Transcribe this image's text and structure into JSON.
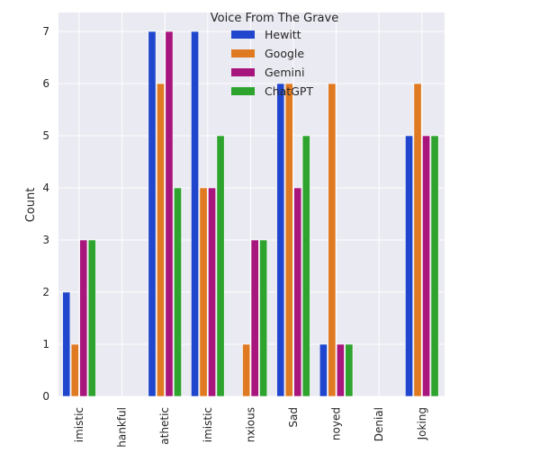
{
  "chart_data": {
    "type": "bar",
    "title": "",
    "xlabel": "",
    "ylabel": "Count",
    "ylim": [
      0,
      7
    ],
    "yticks": [
      0,
      1,
      2,
      3,
      4,
      5,
      6,
      7
    ],
    "grid": true,
    "legend": {
      "title": "Voice From The Grave",
      "placement": "top-center"
    },
    "categories": [
      "Optimistic",
      "Thankful",
      "Sympathetic",
      "Pessimistic",
      "Anxious",
      "Sad",
      "Annoyed",
      "Denial",
      "Joking"
    ],
    "tick_labels": [
      "imistic",
      "hankful",
      "athetic",
      "imistic",
      "nxious",
      "Sad",
      "noyed",
      "Denial",
      "Joking"
    ],
    "series": [
      {
        "name": "Hewitt",
        "color": "#1f46cc",
        "values": [
          2,
          0,
          7,
          7,
          0,
          6,
          1,
          0,
          5
        ]
      },
      {
        "name": "Google",
        "color": "#e07a22",
        "values": [
          1,
          0,
          6,
          4,
          1,
          6,
          6,
          0,
          6
        ]
      },
      {
        "name": "Gemini",
        "color": "#a8157c",
        "values": [
          3,
          0,
          7,
          4,
          3,
          4,
          1,
          0,
          5
        ]
      },
      {
        "name": "ChatGPT",
        "color": "#2ea32e",
        "values": [
          3,
          0,
          4,
          5,
          3,
          5,
          1,
          0,
          5
        ]
      }
    ]
  }
}
